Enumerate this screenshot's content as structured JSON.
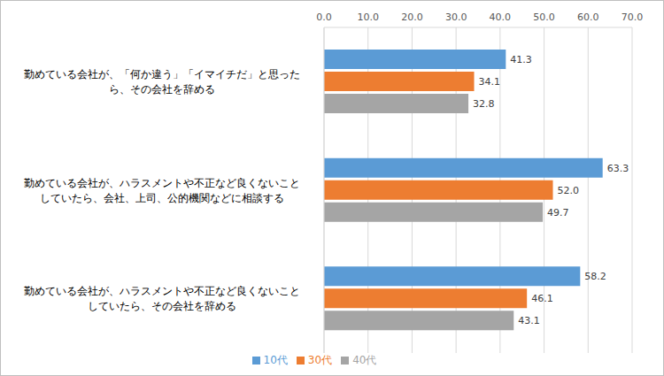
{
  "chart_data": {
    "type": "bar",
    "orientation": "horizontal",
    "categories": [
      "勤めている会社が、「何か違う」「イマイチだ」と思ったら、その会社を辞める",
      "勤めている会社が、ハラスメントや不正など良くないことしていたら、会社、上司、公的機関などに相談する",
      "勤めている会社が、ハラスメントや不正など良くないことしていたら、その会社を辞める"
    ],
    "series": [
      {
        "name": "10代",
        "color": "#5b9bd5",
        "values": [
          41.3,
          63.3,
          58.2
        ],
        "value_labels": [
          "41.3",
          "63.3",
          "58.2"
        ]
      },
      {
        "name": "30代",
        "color": "#ed7d31",
        "values": [
          34.1,
          52.0,
          46.1
        ],
        "value_labels": [
          "34.1",
          "52.0",
          "46.1"
        ]
      },
      {
        "name": "40代",
        "color": "#a5a5a5",
        "values": [
          32.8,
          49.7,
          43.1
        ],
        "value_labels": [
          "32.8",
          "49.7",
          "43.1"
        ]
      }
    ],
    "xlim": [
      0,
      70
    ],
    "xticks": [
      {
        "value": 0,
        "label": "0.0"
      },
      {
        "value": 10,
        "label": "10.0"
      },
      {
        "value": 20,
        "label": "20.0"
      },
      {
        "value": 30,
        "label": "30.0"
      },
      {
        "value": 40,
        "label": "40.0"
      },
      {
        "value": 50,
        "label": "50.0"
      },
      {
        "value": 60,
        "label": "60.0"
      },
      {
        "value": 70,
        "label": "70.0"
      }
    ],
    "grid": true,
    "legend": "bottom",
    "data_labels": true
  }
}
